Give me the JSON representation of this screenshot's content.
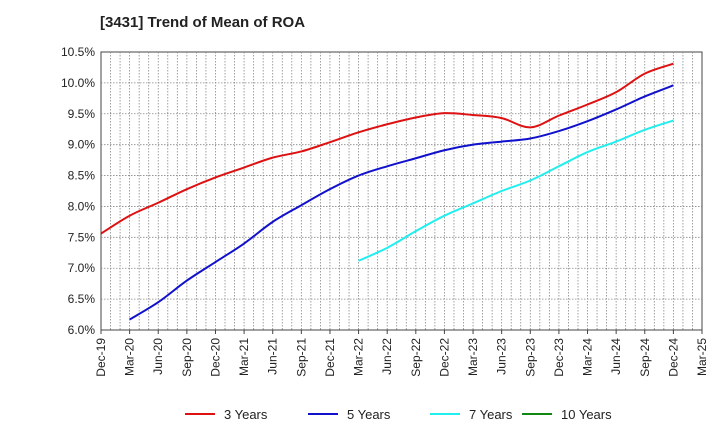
{
  "chart_data": {
    "type": "line",
    "title": "[3431]  Trend of Mean of ROA",
    "xlabel": "",
    "ylabel": "",
    "y_unit": "%",
    "ylim": [
      6.0,
      10.5
    ],
    "y_ticks": [
      "6.0%",
      "6.5%",
      "7.0%",
      "7.5%",
      "8.0%",
      "8.5%",
      "9.0%",
      "9.5%",
      "10.0%",
      "10.5%"
    ],
    "categories": [
      "Dec-19",
      "Mar-20",
      "Jun-20",
      "Sep-20",
      "Dec-20",
      "Mar-21",
      "Jun-21",
      "Sep-21",
      "Dec-21",
      "Mar-22",
      "Jun-22",
      "Sep-22",
      "Dec-22",
      "Mar-23",
      "Jun-23",
      "Sep-23",
      "Dec-23",
      "Mar-24",
      "Jun-24",
      "Sep-24",
      "Dec-24",
      "Mar-25"
    ],
    "grid": true,
    "legend_position": "bottom",
    "series": [
      {
        "name": "3 Years",
        "color": "#dd1111",
        "values": [
          7.56,
          7.85,
          8.06,
          8.28,
          8.47,
          8.63,
          8.79,
          8.89,
          9.04,
          9.2,
          9.33,
          9.44,
          9.51,
          9.48,
          9.43,
          9.28,
          9.47,
          9.65,
          9.85,
          10.15,
          10.31,
          null
        ]
      },
      {
        "name": "5 Years",
        "color": "#1111cc",
        "values": [
          null,
          6.17,
          6.45,
          6.8,
          7.1,
          7.4,
          7.75,
          8.02,
          8.28,
          8.5,
          8.65,
          8.78,
          8.91,
          9.0,
          9.05,
          9.1,
          9.22,
          9.38,
          9.57,
          9.78,
          9.96,
          null
        ]
      },
      {
        "name": "7 Years",
        "color": "#22eeee",
        "values": [
          null,
          null,
          null,
          null,
          null,
          null,
          null,
          null,
          null,
          7.12,
          7.33,
          7.6,
          7.85,
          8.05,
          8.25,
          8.42,
          8.65,
          8.88,
          9.05,
          9.24,
          9.39,
          null
        ]
      },
      {
        "name": "10 Years",
        "color": "#118811",
        "values": [
          null,
          null,
          null,
          null,
          null,
          null,
          null,
          null,
          null,
          null,
          null,
          null,
          null,
          null,
          null,
          null,
          null,
          null,
          null,
          null,
          null,
          null
        ]
      }
    ]
  }
}
